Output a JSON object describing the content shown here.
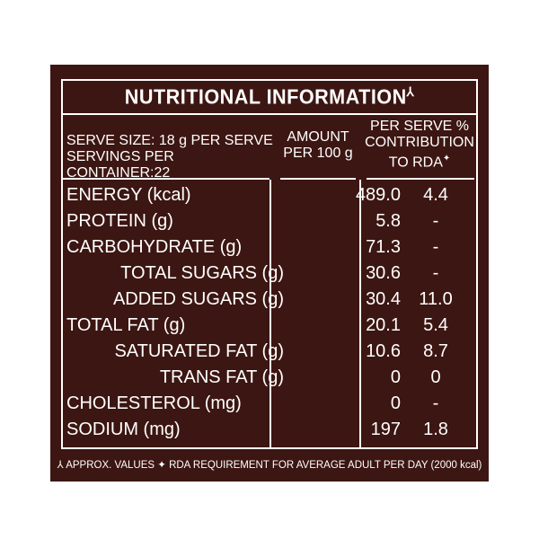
{
  "title": "NUTRITIONAL INFORMATION",
  "title_mark": "⅄",
  "header": {
    "serve_size": "SERVE SIZE: 18 g PER SERVE",
    "servings_per_container": "SERVINGS PER CONTAINER:22",
    "amount_line1": "AMOUNT",
    "amount_line2": "PER 100 g",
    "rda_line1": "PER SERVE %",
    "rda_line2": "CONTRIBUTION",
    "rda_line3": "TO RDA",
    "rda_mark": "✦"
  },
  "rows": [
    {
      "name": "ENERGY (kcal)",
      "amount": "489.0",
      "rda": "4.4"
    },
    {
      "name": "PROTEIN (g)",
      "amount": "5.8",
      "rda": "-"
    },
    {
      "name": "CARBOHYDRATE (g)",
      "amount": "71.3",
      "rda": "-"
    },
    {
      "name": "TOTAL SUGARS (g)",
      "amount": "30.6",
      "rda": "-"
    },
    {
      "name": "ADDED SUGARS (g)",
      "amount": "30.4",
      "rda": "11.0"
    },
    {
      "name": "TOTAL FAT (g)",
      "amount": "20.1",
      "rda": "5.4"
    },
    {
      "name": "SATURATED FAT (g)",
      "amount": "10.6",
      "rda": "8.7"
    },
    {
      "name": "TRANS FAT (g)",
      "amount": "0",
      "rda": "0"
    },
    {
      "name": "CHOLESTEROL (mg)",
      "amount": "0",
      "rda": "-"
    },
    {
      "name": "SODIUM (mg)",
      "amount": "197",
      "rda": "1.8"
    }
  ],
  "footer": "⅄ APPROX. VALUES ✦ RDA REQUIREMENT FOR AVERAGE ADULT PER DAY (2000 kcal)",
  "colors": {
    "background": "#3c1612",
    "text": "#ffffff"
  }
}
